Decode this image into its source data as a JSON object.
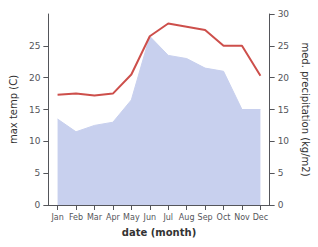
{
  "chart_data": {
    "type": "line",
    "categories": [
      "Jan",
      "Feb",
      "Mar",
      "Apr",
      "May",
      "Jun",
      "Jul",
      "Aug",
      "Sep",
      "Oct",
      "Nov",
      "Dec"
    ],
    "series": [
      {
        "type": "area",
        "color": "#c8d0ee",
        "axis": "y2",
        "values": [
          13.5,
          11.5,
          12.5,
          13.0,
          16.5,
          26.5,
          23.5,
          23.0,
          21.5,
          21.0,
          15.0,
          15.0
        ]
      },
      {
        "type": "line",
        "color": "#cd4f4b",
        "values": [
          17.3,
          17.5,
          17.2,
          17.5,
          20.5,
          26.5,
          28.5,
          28.0,
          27.5,
          25.0,
          25.0,
          20.3
        ]
      }
    ],
    "xlabel": "date (month)",
    "ylabel": "max temp (C)",
    "y2label": "med. precipitation (kg/m2)",
    "ylim": [
      0,
      30
    ],
    "yticks": [
      0,
      5,
      10,
      15,
      20,
      25
    ],
    "y2lim": [
      0,
      30
    ],
    "y2ticks": [
      0,
      5,
      10,
      15,
      20,
      25,
      30
    ],
    "grid": false
  }
}
